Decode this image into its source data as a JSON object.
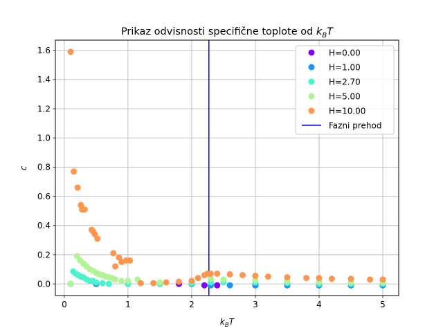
{
  "chart_data": {
    "type": "scatter",
    "title": "Prikaz odvisnosti specifične toplote od k_BT",
    "title_text": "Prikaz odvisnosti specifične toplote od ",
    "xlabel": "k_BT",
    "ylabel": "c",
    "xlim": [
      -0.14,
      5.25
    ],
    "ylim": [
      -0.08,
      1.67
    ],
    "xticks": [
      0,
      1,
      2,
      3,
      4,
      5
    ],
    "yticks": [
      0.0,
      0.2,
      0.4,
      0.6,
      0.8,
      1.0,
      1.2,
      1.4,
      1.6
    ],
    "xtick_labels": [
      "0",
      "1",
      "2",
      "3",
      "4",
      "5"
    ],
    "ytick_labels": [
      "0.0",
      "0.2",
      "0.4",
      "0.6",
      "0.8",
      "1.0",
      "1.2",
      "1.4",
      "1.6"
    ],
    "grid": true,
    "legend_position": "top-right",
    "phase_transition": {
      "name": "Fazni prehod",
      "x": 2.27,
      "color": "#0000ff"
    },
    "series": [
      {
        "name": "H=0.00",
        "color": "#8000ff",
        "points": [
          [
            0.1,
            0.0
          ],
          [
            0.5,
            0.0
          ],
          [
            1.0,
            0.0
          ],
          [
            1.5,
            0.0
          ],
          [
            1.8,
            0.0
          ],
          [
            2.0,
            0.0
          ],
          [
            2.2,
            -0.01
          ],
          [
            2.4,
            -0.01
          ],
          [
            3.0,
            -0.01
          ],
          [
            3.5,
            -0.01
          ],
          [
            4.0,
            -0.01
          ],
          [
            4.5,
            -0.01
          ],
          [
            5.0,
            -0.01
          ]
        ]
      },
      {
        "name": "H=1.00",
        "color": "#1996f3",
        "points": [
          [
            0.1,
            0.0
          ],
          [
            0.5,
            0.0
          ],
          [
            1.0,
            0.0
          ],
          [
            1.5,
            0.0
          ],
          [
            2.0,
            0.0
          ],
          [
            2.3,
            -0.01
          ],
          [
            2.6,
            -0.01
          ],
          [
            3.0,
            -0.01
          ],
          [
            3.5,
            -0.01
          ],
          [
            4.0,
            -0.01
          ],
          [
            4.5,
            -0.01
          ],
          [
            5.0,
            -0.01
          ]
        ]
      },
      {
        "name": "H=2.70",
        "color": "#4df3ce",
        "points": [
          [
            0.1,
            0.0
          ],
          [
            0.14,
            0.085
          ],
          [
            0.18,
            0.07
          ],
          [
            0.22,
            0.06
          ],
          [
            0.26,
            0.05
          ],
          [
            0.3,
            0.045
          ],
          [
            0.35,
            0.03
          ],
          [
            0.4,
            0.02
          ],
          [
            0.45,
            0.02
          ],
          [
            0.5,
            0.01
          ],
          [
            0.6,
            0.005
          ],
          [
            0.7,
            0.0
          ],
          [
            1.0,
            0.0
          ],
          [
            1.5,
            0.0
          ],
          [
            2.0,
            0.005
          ],
          [
            2.3,
            0.01
          ],
          [
            2.5,
            0.01
          ],
          [
            3.0,
            0.01
          ],
          [
            3.5,
            0.005
          ],
          [
            4.0,
            0.0
          ],
          [
            4.5,
            0.0
          ],
          [
            5.0,
            0.0
          ]
        ]
      },
      {
        "name": "H=5.00",
        "color": "#b2f396",
        "points": [
          [
            0.1,
            0.0
          ],
          [
            0.2,
            0.19
          ],
          [
            0.25,
            0.16
          ],
          [
            0.3,
            0.14
          ],
          [
            0.35,
            0.12
          ],
          [
            0.4,
            0.1
          ],
          [
            0.45,
            0.09
          ],
          [
            0.5,
            0.075
          ],
          [
            0.55,
            0.065
          ],
          [
            0.6,
            0.06
          ],
          [
            0.65,
            0.05
          ],
          [
            0.7,
            0.045
          ],
          [
            0.75,
            0.04
          ],
          [
            0.8,
            0.03
          ],
          [
            0.9,
            0.02
          ],
          [
            1.0,
            0.02
          ],
          [
            1.15,
            0.03
          ],
          [
            1.5,
            0.01
          ],
          [
            2.0,
            0.02
          ],
          [
            2.3,
            0.035
          ],
          [
            2.5,
            0.03
          ],
          [
            3.0,
            0.025
          ],
          [
            3.5,
            0.02
          ],
          [
            4.0,
            0.015
          ],
          [
            4.5,
            0.01
          ],
          [
            5.0,
            0.01
          ]
        ]
      },
      {
        "name": "H=10.00",
        "color": "#ff964f",
        "points": [
          [
            0.1,
            1.59
          ],
          [
            0.15,
            0.77
          ],
          [
            0.21,
            0.66
          ],
          [
            0.26,
            0.54
          ],
          [
            0.28,
            0.51
          ],
          [
            0.32,
            0.51
          ],
          [
            0.43,
            0.37
          ],
          [
            0.45,
            0.36
          ],
          [
            0.48,
            0.34
          ],
          [
            0.52,
            0.31
          ],
          [
            0.77,
            0.21
          ],
          [
            0.8,
            0.12
          ],
          [
            0.86,
            0.18
          ],
          [
            0.9,
            0.15
          ],
          [
            0.97,
            0.16
          ],
          [
            1.03,
            0.16
          ],
          [
            1.2,
            0.005
          ],
          [
            1.4,
            0.005
          ],
          [
            1.6,
            0.01
          ],
          [
            1.8,
            0.015
          ],
          [
            2.0,
            0.02
          ],
          [
            2.1,
            0.04
          ],
          [
            2.2,
            0.06
          ],
          [
            2.25,
            0.07
          ],
          [
            2.3,
            0.07
          ],
          [
            2.4,
            0.07
          ],
          [
            2.6,
            0.065
          ],
          [
            2.8,
            0.06
          ],
          [
            3.0,
            0.055
          ],
          [
            3.2,
            0.05
          ],
          [
            3.5,
            0.045
          ],
          [
            3.8,
            0.04
          ],
          [
            4.0,
            0.04
          ],
          [
            4.2,
            0.035
          ],
          [
            4.5,
            0.035
          ],
          [
            4.8,
            0.03
          ],
          [
            5.0,
            0.03
          ]
        ]
      }
    ]
  }
}
